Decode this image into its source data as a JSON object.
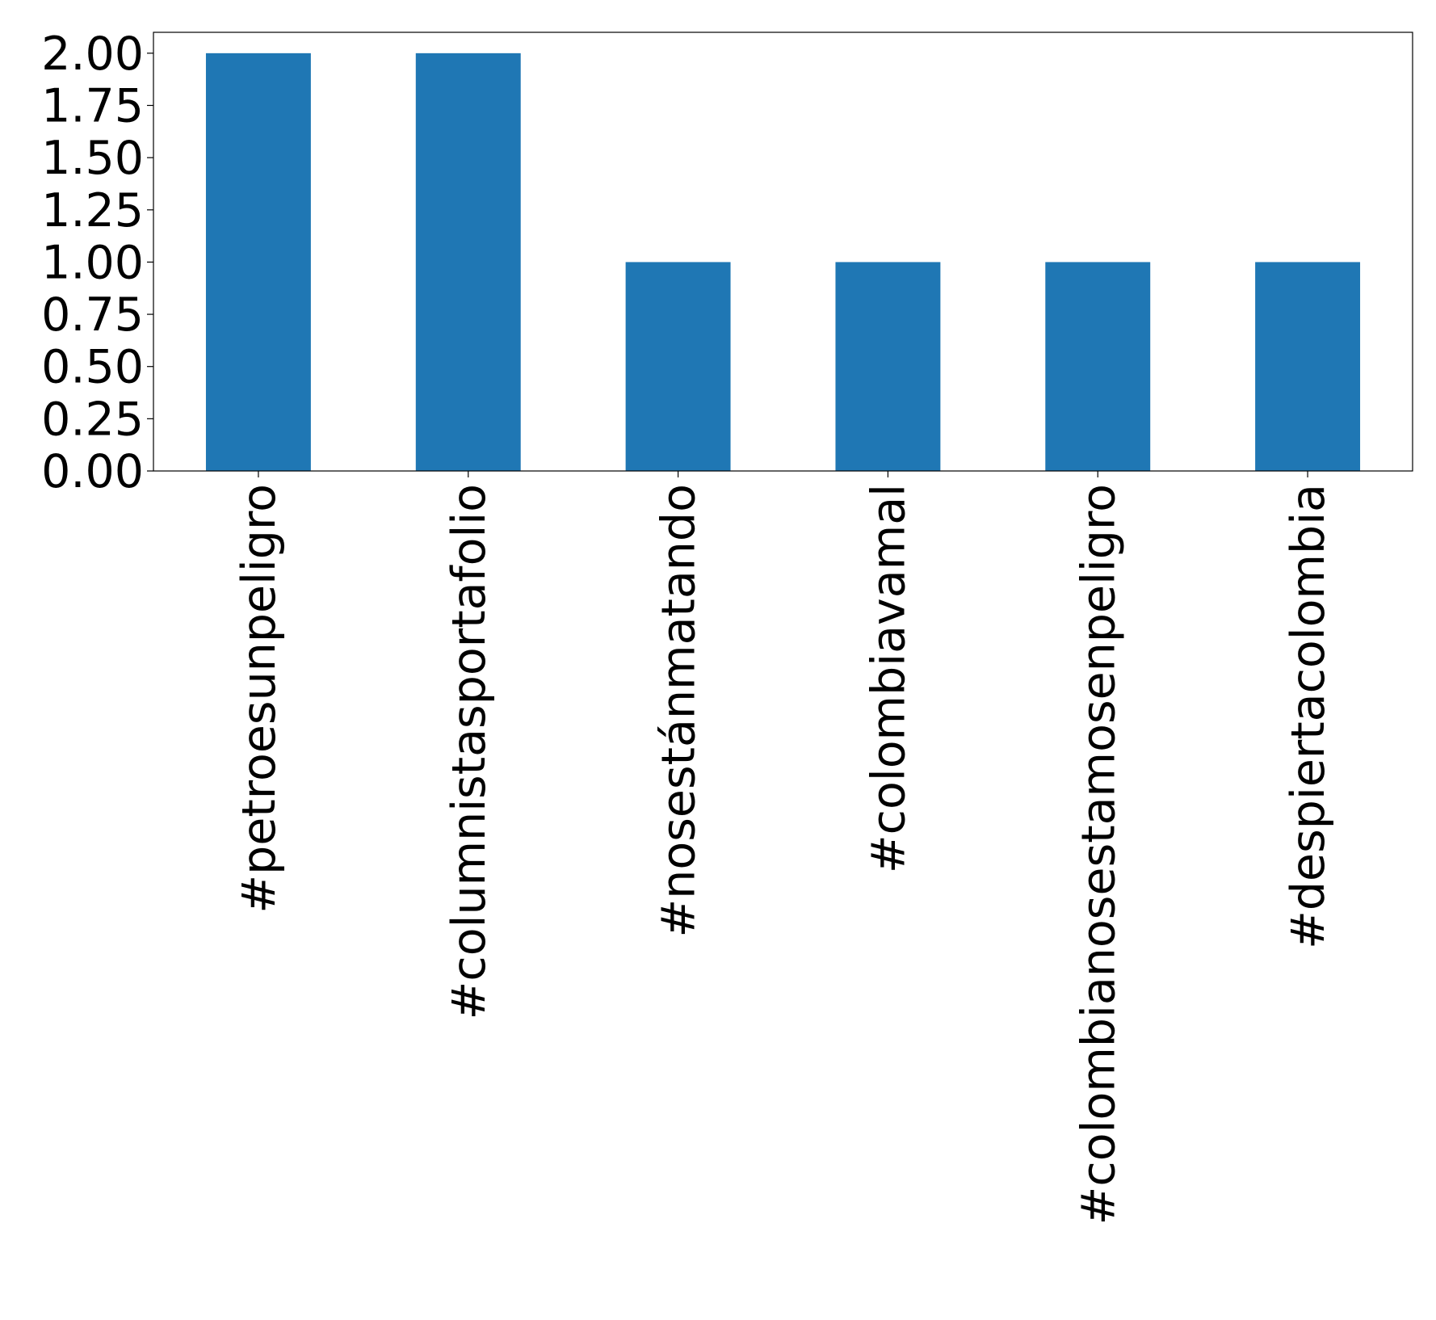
{
  "chart_data": {
    "type": "bar",
    "categories": [
      "#petroesunpeligro",
      "#columnistasportafolio",
      "#nosestánmatando",
      "#colombiavamal",
      "#colombianosestamosenpeligro",
      "#despiertacolombia"
    ],
    "values": [
      2,
      2,
      1,
      1,
      1,
      1
    ],
    "color": "#1f77b4",
    "ylim": [
      0,
      2.1
    ],
    "yticks": [
      {
        "value": 0,
        "label": "0.00"
      },
      {
        "value": 0.25,
        "label": "0.25"
      },
      {
        "value": 0.5,
        "label": "0.50"
      },
      {
        "value": 0.75,
        "label": "0.75"
      },
      {
        "value": 1,
        "label": "1.00"
      },
      {
        "value": 1.25,
        "label": "1.25"
      },
      {
        "value": 1.5,
        "label": "1.50"
      },
      {
        "value": 1.75,
        "label": "1.75"
      },
      {
        "value": 2,
        "label": "2.00"
      }
    ],
    "grid": false
  }
}
